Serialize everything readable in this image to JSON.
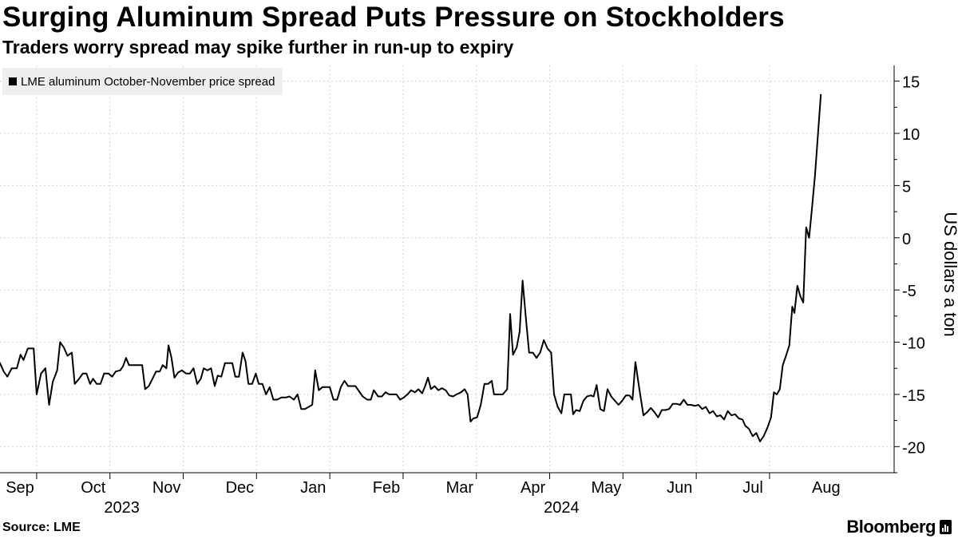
{
  "title": "Surging Aluminum Spread Puts Pressure on Stockholders",
  "subtitle": "Traders worry spread may spike further in run-up to expiry",
  "source": "Source: LME",
  "brand": "Bloomberg",
  "brand_icon": "bloomberg-bars-icon",
  "colors": {
    "line": "#000000",
    "grid": "#d4d4d4",
    "legend_bg": "#efefef"
  },
  "chart_data": {
    "type": "line",
    "series_name": "LME aluminum October-November price spread",
    "ylabel": "US dollars a ton",
    "ylim": [
      -22.5,
      16.5
    ],
    "yticks": [
      -20,
      -15,
      -10,
      -5,
      0,
      5,
      10,
      15
    ],
    "ytick_labels": [
      "-20",
      "-15",
      "-10",
      "-5",
      "0",
      "5",
      "10",
      "15"
    ],
    "xlim": [
      0,
      12.2
    ],
    "month_labels": [
      "Sep",
      "Oct",
      "Nov",
      "Dec",
      "Jan",
      "Feb",
      "Mar",
      "Apr",
      "May",
      "Jun",
      "Jul",
      "Aug"
    ],
    "year_labels": [
      {
        "label": "2023",
        "month_index": 2
      },
      {
        "label": "2024",
        "month_index": 8
      }
    ],
    "points": [
      [
        0.0,
        -12.0
      ],
      [
        0.05,
        -12.8
      ],
      [
        0.1,
        -13.3
      ],
      [
        0.16,
        -12.5
      ],
      [
        0.23,
        -12.5
      ],
      [
        0.28,
        -11.2
      ],
      [
        0.32,
        -11.7
      ],
      [
        0.38,
        -10.6
      ],
      [
        0.46,
        -10.6
      ],
      [
        0.5,
        -15.0
      ],
      [
        0.56,
        -13.0
      ],
      [
        0.62,
        -12.5
      ],
      [
        0.67,
        -16.0
      ],
      [
        0.72,
        -13.8
      ],
      [
        0.78,
        -12.7
      ],
      [
        0.82,
        -10.0
      ],
      [
        0.87,
        -10.5
      ],
      [
        0.92,
        -11.3
      ],
      [
        0.98,
        -11.0
      ],
      [
        1.02,
        -14.0
      ],
      [
        1.08,
        -13.5
      ],
      [
        1.13,
        -13.0
      ],
      [
        1.18,
        -13.0
      ],
      [
        1.23,
        -14.0
      ],
      [
        1.27,
        -13.5
      ],
      [
        1.32,
        -14.0
      ],
      [
        1.37,
        -14.0
      ],
      [
        1.42,
        -13.0
      ],
      [
        1.48,
        -13.0
      ],
      [
        1.53,
        -13.3
      ],
      [
        1.58,
        -12.8
      ],
      [
        1.64,
        -12.7
      ],
      [
        1.68,
        -12.3
      ],
      [
        1.72,
        -11.5
      ],
      [
        1.76,
        -12.2
      ],
      [
        1.84,
        -12.2
      ],
      [
        1.94,
        -12.2
      ],
      [
        1.98,
        -14.5
      ],
      [
        2.03,
        -14.2
      ],
      [
        2.08,
        -13.5
      ],
      [
        2.13,
        -12.8
      ],
      [
        2.18,
        -12.8
      ],
      [
        2.22,
        -12.2
      ],
      [
        2.27,
        -12.5
      ],
      [
        2.3,
        -10.3
      ],
      [
        2.34,
        -11.5
      ],
      [
        2.38,
        -13.4
      ],
      [
        2.43,
        -12.9
      ],
      [
        2.48,
        -12.7
      ],
      [
        2.54,
        -13.0
      ],
      [
        2.59,
        -13.0
      ],
      [
        2.64,
        -12.5
      ],
      [
        2.69,
        -14.0
      ],
      [
        2.74,
        -13.5
      ],
      [
        2.78,
        -12.5
      ],
      [
        2.83,
        -12.7
      ],
      [
        2.88,
        -12.5
      ],
      [
        2.93,
        -14.2
      ],
      [
        2.97,
        -13.2
      ],
      [
        3.02,
        -13.3
      ],
      [
        3.07,
        -12.0
      ],
      [
        3.13,
        -12.0
      ],
      [
        3.17,
        -12.0
      ],
      [
        3.21,
        -13.3
      ],
      [
        3.26,
        -13.3
      ],
      [
        3.31,
        -11.0
      ],
      [
        3.35,
        -11.8
      ],
      [
        3.39,
        -14.0
      ],
      [
        3.44,
        -14.0
      ],
      [
        3.49,
        -13.0
      ],
      [
        3.53,
        -14.0
      ],
      [
        3.58,
        -14.0
      ],
      [
        3.63,
        -15.0
      ],
      [
        3.68,
        -14.3
      ],
      [
        3.73,
        -15.5
      ],
      [
        3.78,
        -15.5
      ],
      [
        3.84,
        -15.3
      ],
      [
        3.9,
        -15.3
      ],
      [
        3.95,
        -15.2
      ],
      [
        4.01,
        -15.5
      ],
      [
        4.06,
        -15.0
      ],
      [
        4.11,
        -16.4
      ],
      [
        4.16,
        -16.4
      ],
      [
        4.21,
        -16.2
      ],
      [
        4.26,
        -16.0
      ],
      [
        4.3,
        -12.7
      ],
      [
        4.35,
        -14.6
      ],
      [
        4.4,
        -14.3
      ],
      [
        4.45,
        -14.3
      ],
      [
        4.5,
        -14.3
      ],
      [
        4.55,
        -15.5
      ],
      [
        4.6,
        -15.5
      ],
      [
        4.65,
        -14.3
      ],
      [
        4.7,
        -13.7
      ],
      [
        4.75,
        -14.2
      ],
      [
        4.8,
        -14.2
      ],
      [
        4.85,
        -14.2
      ],
      [
        4.9,
        -14.7
      ],
      [
        4.95,
        -15.2
      ],
      [
        5.01,
        -15.5
      ],
      [
        5.06,
        -15.5
      ],
      [
        5.1,
        -14.6
      ],
      [
        5.16,
        -15.2
      ],
      [
        5.21,
        -15.2
      ],
      [
        5.26,
        -14.8
      ],
      [
        5.31,
        -15.0
      ],
      [
        5.36,
        -15.0
      ],
      [
        5.41,
        -15.0
      ],
      [
        5.46,
        -15.5
      ],
      [
        5.51,
        -15.3
      ],
      [
        5.56,
        -15.0
      ],
      [
        5.61,
        -14.6
      ],
      [
        5.66,
        -14.8
      ],
      [
        5.71,
        -14.5
      ],
      [
        5.76,
        -14.9
      ],
      [
        5.8,
        -14.2
      ],
      [
        5.84,
        -13.4
      ],
      [
        5.88,
        -14.5
      ],
      [
        5.93,
        -14.2
      ],
      [
        5.98,
        -14.6
      ],
      [
        6.03,
        -14.4
      ],
      [
        6.08,
        -14.6
      ],
      [
        6.13,
        -15.1
      ],
      [
        6.18,
        -15.2
      ],
      [
        6.23,
        -15.0
      ],
      [
        6.29,
        -14.8
      ],
      [
        6.34,
        -14.5
      ],
      [
        6.38,
        -15.0
      ],
      [
        6.42,
        -17.6
      ],
      [
        6.46,
        -17.3
      ],
      [
        6.51,
        -17.2
      ],
      [
        6.56,
        -16.0
      ],
      [
        6.61,
        -14.0
      ],
      [
        6.66,
        -14.0
      ],
      [
        6.71,
        -13.7
      ],
      [
        6.74,
        -15.0
      ],
      [
        6.8,
        -15.0
      ],
      [
        6.86,
        -15.0
      ],
      [
        6.92,
        -14.5
      ],
      [
        6.96,
        -7.3
      ],
      [
        7.0,
        -11.2
      ],
      [
        7.05,
        -10.5
      ],
      [
        7.09,
        -9.0
      ],
      [
        7.13,
        -4.1
      ],
      [
        7.18,
        -8.0
      ],
      [
        7.22,
        -11.0
      ],
      [
        7.27,
        -11.0
      ],
      [
        7.32,
        -11.5
      ],
      [
        7.37,
        -11.0
      ],
      [
        7.42,
        -9.8
      ],
      [
        7.47,
        -10.6
      ],
      [
        7.52,
        -11.0
      ],
      [
        7.56,
        -15.0
      ],
      [
        7.61,
        -16.2
      ],
      [
        7.66,
        -16.8
      ],
      [
        7.7,
        -15.0
      ],
      [
        7.75,
        -15.0
      ],
      [
        7.79,
        -15.0
      ],
      [
        7.82,
        -16.9
      ],
      [
        7.86,
        -16.5
      ],
      [
        7.91,
        -16.6
      ],
      [
        7.96,
        -15.6
      ],
      [
        8.01,
        -15.2
      ],
      [
        8.06,
        -15.1
      ],
      [
        8.1,
        -15.2
      ],
      [
        8.14,
        -14.1
      ],
      [
        8.19,
        -16.4
      ],
      [
        8.24,
        -16.6
      ],
      [
        8.29,
        -14.5
      ],
      [
        8.34,
        -15.2
      ],
      [
        8.39,
        -15.6
      ],
      [
        8.44,
        -16.0
      ],
      [
        8.49,
        -15.6
      ],
      [
        8.54,
        -15.1
      ],
      [
        8.59,
        -15.1
      ],
      [
        8.63,
        -15.5
      ],
      [
        8.67,
        -11.9
      ],
      [
        8.72,
        -14.3
      ],
      [
        8.78,
        -17.0
      ],
      [
        8.83,
        -16.7
      ],
      [
        8.88,
        -16.3
      ],
      [
        8.93,
        -16.7
      ],
      [
        8.98,
        -17.2
      ],
      [
        9.03,
        -16.5
      ],
      [
        9.08,
        -16.5
      ],
      [
        9.13,
        -16.4
      ],
      [
        9.18,
        -15.9
      ],
      [
        9.23,
        -15.9
      ],
      [
        9.28,
        -16.0
      ],
      [
        9.33,
        -15.5
      ],
      [
        9.38,
        -16.0
      ],
      [
        9.43,
        -16.0
      ],
      [
        9.48,
        -16.1
      ],
      [
        9.53,
        -16.0
      ],
      [
        9.58,
        -16.4
      ],
      [
        9.63,
        -16.2
      ],
      [
        9.68,
        -16.8
      ],
      [
        9.73,
        -16.6
      ],
      [
        9.78,
        -17.1
      ],
      [
        9.83,
        -17.0
      ],
      [
        9.88,
        -17.4
      ],
      [
        9.93,
        -16.6
      ],
      [
        9.98,
        -17.0
      ],
      [
        10.03,
        -16.9
      ],
      [
        10.08,
        -17.3
      ],
      [
        10.13,
        -17.4
      ],
      [
        10.17,
        -18.0
      ],
      [
        10.22,
        -18.3
      ],
      [
        10.27,
        -19.0
      ],
      [
        10.32,
        -18.7
      ],
      [
        10.37,
        -19.5
      ],
      [
        10.42,
        -19.0
      ],
      [
        10.47,
        -18.2
      ],
      [
        10.52,
        -17.2
      ],
      [
        10.56,
        -14.8
      ],
      [
        10.6,
        -15.0
      ],
      [
        10.64,
        -14.5
      ],
      [
        10.68,
        -12.2
      ],
      [
        10.73,
        -11.2
      ],
      [
        10.77,
        -10.3
      ],
      [
        10.81,
        -6.6
      ],
      [
        10.84,
        -7.2
      ],
      [
        10.88,
        -4.6
      ],
      [
        10.92,
        -5.6
      ],
      [
        10.96,
        -6.2
      ],
      [
        11.0,
        1.0
      ],
      [
        11.04,
        0.0
      ],
      [
        11.08,
        2.9
      ],
      [
        11.12,
        6.0
      ],
      [
        11.16,
        9.8
      ],
      [
        11.2,
        13.7
      ]
    ]
  }
}
